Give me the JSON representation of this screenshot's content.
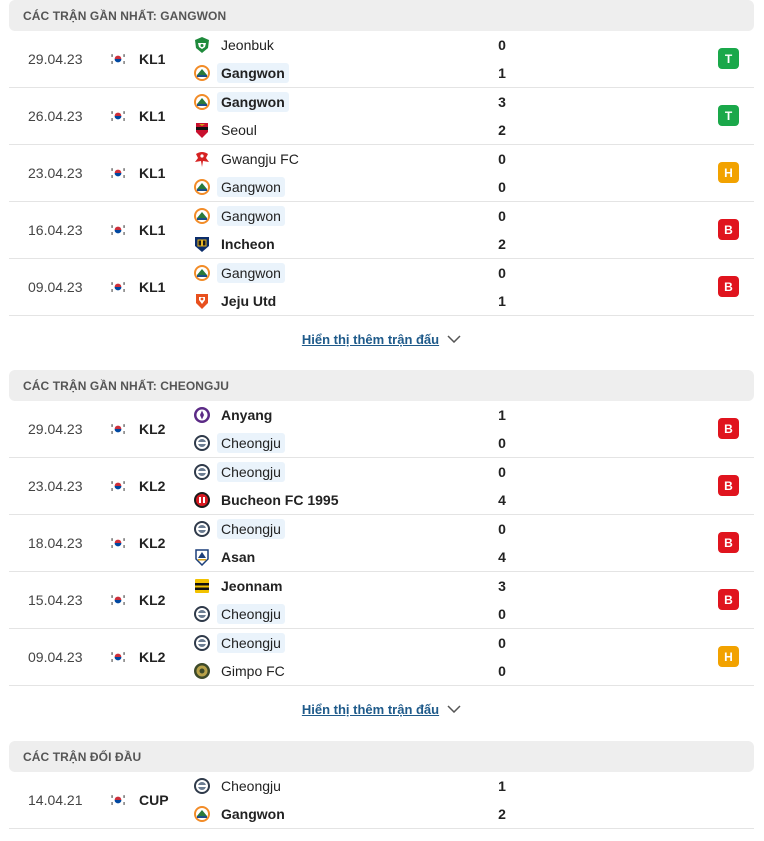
{
  "colors": {
    "win": "#1aa84a",
    "draw": "#f2a200",
    "loss": "#e0141e"
  },
  "sections": [
    {
      "title": "CÁC TRẬN GẦN NHẤT: GANGWON",
      "more_label": "Hiển thị thêm trận đấu",
      "matches": [
        {
          "date": "29.04.23",
          "league": "KL1",
          "home": "Jeonbuk",
          "home_logo": "jeonbuk-logo",
          "home_bold": false,
          "home_hl": false,
          "away": "Gangwon",
          "away_logo": "gangwon-logo",
          "away_bold": true,
          "away_hl": true,
          "home_score": "0",
          "away_score": "1",
          "result": "T",
          "result_type": "win"
        },
        {
          "date": "26.04.23",
          "league": "KL1",
          "home": "Gangwon",
          "home_logo": "gangwon-logo",
          "home_bold": true,
          "home_hl": true,
          "away": "Seoul",
          "away_logo": "seoul-logo",
          "away_bold": false,
          "away_hl": false,
          "home_score": "3",
          "away_score": "2",
          "result": "T",
          "result_type": "win"
        },
        {
          "date": "23.04.23",
          "league": "KL1",
          "home": "Gwangju FC",
          "home_logo": "gwangju-logo",
          "home_bold": false,
          "home_hl": false,
          "away": "Gangwon",
          "away_logo": "gangwon-logo",
          "away_bold": false,
          "away_hl": true,
          "home_score": "0",
          "away_score": "0",
          "result": "H",
          "result_type": "draw"
        },
        {
          "date": "16.04.23",
          "league": "KL1",
          "home": "Gangwon",
          "home_logo": "gangwon-logo",
          "home_bold": false,
          "home_hl": true,
          "away": "Incheon",
          "away_logo": "incheon-logo",
          "away_bold": true,
          "away_hl": false,
          "home_score": "0",
          "away_score": "2",
          "result": "B",
          "result_type": "loss"
        },
        {
          "date": "09.04.23",
          "league": "KL1",
          "home": "Gangwon",
          "home_logo": "gangwon-logo",
          "home_bold": false,
          "home_hl": true,
          "away": "Jeju Utd",
          "away_logo": "jeju-logo",
          "away_bold": true,
          "away_hl": false,
          "home_score": "0",
          "away_score": "1",
          "result": "B",
          "result_type": "loss"
        }
      ]
    },
    {
      "title": "CÁC TRẬN GẦN NHẤT: CHEONGJU",
      "more_label": "Hiển thị thêm trận đấu",
      "matches": [
        {
          "date": "29.04.23",
          "league": "KL2",
          "home": "Anyang",
          "home_logo": "anyang-logo",
          "home_bold": true,
          "home_hl": false,
          "away": "Cheongju",
          "away_logo": "cheongju-logo",
          "away_bold": false,
          "away_hl": true,
          "home_score": "1",
          "away_score": "0",
          "result": "B",
          "result_type": "loss"
        },
        {
          "date": "23.04.23",
          "league": "KL2",
          "home": "Cheongju",
          "home_logo": "cheongju-logo",
          "home_bold": false,
          "home_hl": true,
          "away": "Bucheon FC 1995",
          "away_logo": "bucheon-logo",
          "away_bold": true,
          "away_hl": false,
          "home_score": "0",
          "away_score": "4",
          "result": "B",
          "result_type": "loss"
        },
        {
          "date": "18.04.23",
          "league": "KL2",
          "home": "Cheongju",
          "home_logo": "cheongju-logo",
          "home_bold": false,
          "home_hl": true,
          "away": "Asan",
          "away_logo": "asan-logo",
          "away_bold": true,
          "away_hl": false,
          "home_score": "0",
          "away_score": "4",
          "result": "B",
          "result_type": "loss"
        },
        {
          "date": "15.04.23",
          "league": "KL2",
          "home": "Jeonnam",
          "home_logo": "jeonnam-logo",
          "home_bold": true,
          "home_hl": false,
          "away": "Cheongju",
          "away_logo": "cheongju-logo",
          "away_bold": false,
          "away_hl": true,
          "home_score": "3",
          "away_score": "0",
          "result": "B",
          "result_type": "loss"
        },
        {
          "date": "09.04.23",
          "league": "KL2",
          "home": "Cheongju",
          "home_logo": "cheongju-logo",
          "home_bold": false,
          "home_hl": true,
          "away": "Gimpo FC",
          "away_logo": "gimpo-logo",
          "away_bold": false,
          "away_hl": false,
          "home_score": "0",
          "away_score": "0",
          "result": "H",
          "result_type": "draw"
        }
      ]
    },
    {
      "title": "CÁC TRẬN ĐỐI ĐẦU",
      "more_label": "",
      "matches": [
        {
          "date": "14.04.21",
          "league": "CUP",
          "home": "Cheongju",
          "home_logo": "cheongju-logo",
          "home_bold": false,
          "home_hl": false,
          "away": "Gangwon",
          "away_logo": "gangwon-logo",
          "away_bold": true,
          "away_hl": false,
          "home_score": "1",
          "away_score": "2",
          "result": "",
          "result_type": ""
        }
      ]
    }
  ]
}
